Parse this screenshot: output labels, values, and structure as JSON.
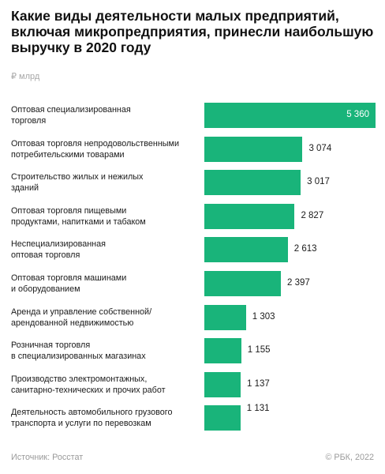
{
  "chart_data": {
    "type": "bar",
    "orientation": "horizontal",
    "title": "Какие виды деятельности малых предприятий, включая микропредприятия, принесли наибольшую выручку в 2020 году",
    "unit": "₽ млрд",
    "categories": [
      [
        "Оптовая специализированная",
        "торговля"
      ],
      [
        "Оптовая торговля непродовольственными",
        "потребительскими товарами"
      ],
      [
        "Строительство жилых и нежилых",
        "зданий"
      ],
      [
        "Оптовая торговля пищевыми",
        "продуктами, напитками и табаком"
      ],
      [
        "Неспециализированная",
        "оптовая торговля"
      ],
      [
        "Оптовая торговля машинами",
        "и оборудованием"
      ],
      [
        "Аренда и управление собственной/",
        "арендованной недвижимостью"
      ],
      [
        "Розничная торговля",
        "в специализированных магазинах"
      ],
      [
        "Производство электромонтажных,",
        "санитарно-технических и прочих работ"
      ],
      [
        "Деятельность автомобильного грузового",
        "транспорта и услуги по перевозкам"
      ]
    ],
    "values": [
      5360,
      3074,
      3017,
      2827,
      2613,
      2397,
      1303,
      1155,
      1137,
      1131
    ],
    "value_labels": [
      "5 360",
      "3 074",
      "3 017",
      "2 827",
      "2 613",
      "2 397",
      "1 303",
      "1 155",
      "1 137",
      "1 131"
    ],
    "xlim": [
      0,
      5360
    ],
    "bar_color": "#19b47a",
    "grid": false,
    "legend": "none"
  },
  "footer": {
    "source": "Источник: Росстат",
    "copyright": "© РБК, 2022"
  }
}
